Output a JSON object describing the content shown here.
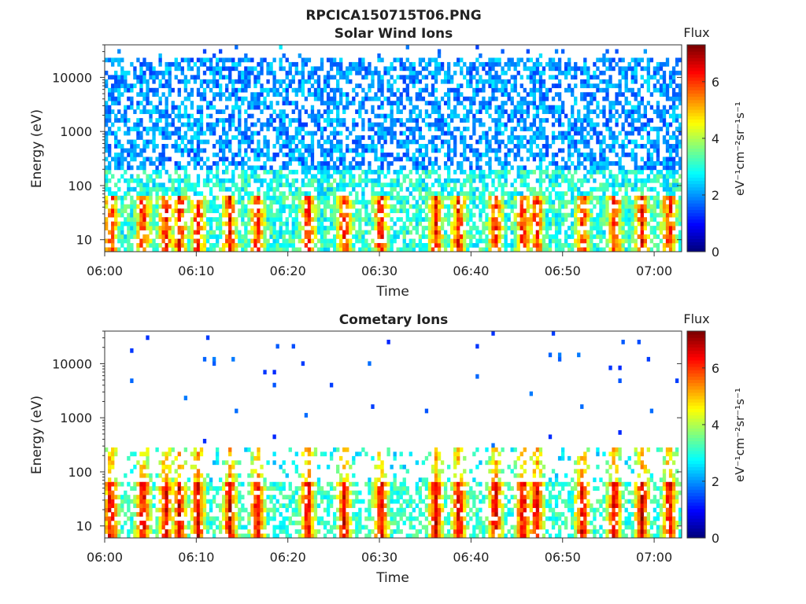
{
  "figure": {
    "title": "RPCICA150715T06.PNG"
  },
  "chart_data": [
    {
      "type": "heatmap",
      "title": "Solar Wind Ions",
      "xlabel": "Time",
      "ylabel": "Energy (eV)",
      "x_ticks": [
        "06:00",
        "06:10",
        "06:20",
        "06:30",
        "06:40",
        "06:50",
        "07:00"
      ],
      "x_range": [
        "06:00",
        "07:03"
      ],
      "y_scale": "log",
      "y_ticks": [
        "10",
        "100",
        "1000",
        "10000"
      ],
      "y_range": [
        6,
        40000
      ],
      "colorbar": {
        "label": "Flux",
        "unit": "eV⁻¹cm⁻²sr⁻¹s⁻¹",
        "ticks": [
          "0",
          "2",
          "4",
          "6"
        ],
        "range": [
          0,
          7.3
        ],
        "colormap": "jet"
      },
      "background": "#ffffff",
      "description_bands": {
        "high_energy_flux": "low (blue)",
        "low_energy_bursts": "high (red/yellow near 20-40 eV)"
      }
    },
    {
      "type": "heatmap",
      "title": "Cometary Ions",
      "xlabel": "Time",
      "ylabel": "Energy (eV)",
      "x_ticks": [
        "06:00",
        "06:10",
        "06:20",
        "06:30",
        "06:40",
        "06:50",
        "07:00"
      ],
      "x_range": [
        "06:00",
        "07:03"
      ],
      "y_scale": "log",
      "y_ticks": [
        "10",
        "100",
        "1000",
        "10000"
      ],
      "y_range": [
        6,
        40000
      ],
      "colorbar": {
        "label": "Flux",
        "unit": "eV⁻¹cm⁻²sr⁻¹s⁻¹",
        "ticks": [
          "0",
          "2",
          "4",
          "6"
        ],
        "range": [
          0,
          7.3
        ],
        "colormap": "jet"
      },
      "background": "#ffffff"
    }
  ]
}
